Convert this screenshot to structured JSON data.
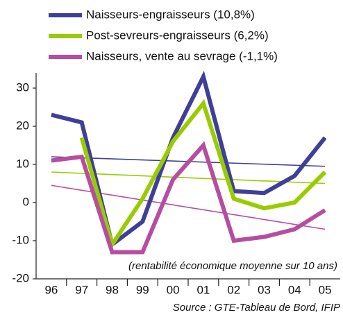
{
  "chart_data": {
    "type": "line",
    "categories": [
      "96",
      "97",
      "98",
      "99",
      "00",
      "01",
      "02",
      "03",
      "04",
      "05"
    ],
    "series": [
      {
        "name": "Naisseurs-engraisseurs (10,8%)",
        "color": "#3f3f99",
        "values": [
          23,
          21,
          -11,
          -5,
          17,
          33,
          3,
          2.5,
          7,
          17
        ],
        "trend": [
          12,
          9.5
        ]
      },
      {
        "name": "Post-sevreurs-engraisseurs (6,2%)",
        "color": "#99cc00",
        "values": [
          null,
          17,
          -11,
          1,
          16,
          26,
          1,
          -1.5,
          0,
          8
        ],
        "trend": [
          8,
          5
        ]
      },
      {
        "name": "Naisseurs, vente au sevrage (-1,1%)",
        "color": "#b54ea0",
        "values": [
          11,
          12,
          -13,
          -13,
          6,
          15,
          -10,
          -9,
          -7,
          -2
        ],
        "trend": [
          4.5,
          -7
        ]
      }
    ],
    "ylim": [
      -20,
      34
    ],
    "yticks": [
      -20,
      -10,
      0,
      10,
      20,
      30
    ],
    "annotation": "(rentabilité économique moyenne sur 10 ans)",
    "source": "Source : GTE-Tableau de Bord, IFIP"
  }
}
